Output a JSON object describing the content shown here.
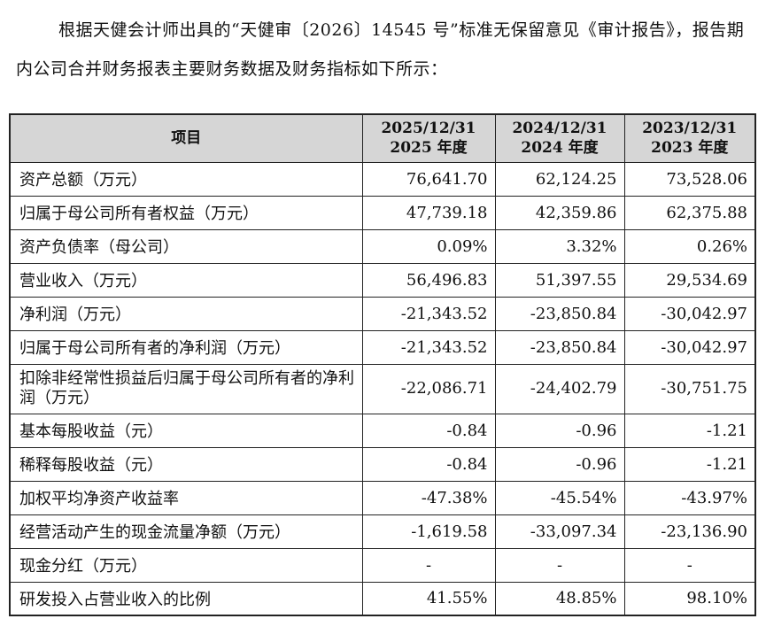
{
  "intro": "根据天健会计师出具的“天健审〔2026〕14545 号”标准无保留意见《审计报告》，报告期内公司合并财务报表主要财务数据及财务指标如下所示：",
  "table": {
    "header_item": "项目",
    "columns": [
      {
        "date": "2025/12/31",
        "year": "2025 年度"
      },
      {
        "date": "2024/12/31",
        "year": "2024 年度"
      },
      {
        "date": "2023/12/31",
        "year": "2023 年度"
      }
    ],
    "rows": [
      {
        "label": "资产总额（万元）",
        "values": [
          "76,641.70",
          "62,124.25",
          "73,528.06"
        ]
      },
      {
        "label": "归属于母公司所有者权益（万元）",
        "values": [
          "47,739.18",
          "42,359.86",
          "62,375.88"
        ]
      },
      {
        "label": "资产负债率（母公司）",
        "values": [
          "0.09%",
          "3.32%",
          "0.26%"
        ]
      },
      {
        "label": "营业收入（万元）",
        "values": [
          "56,496.83",
          "51,397.55",
          "29,534.69"
        ]
      },
      {
        "label": "净利润（万元）",
        "values": [
          "-21,343.52",
          "-23,850.84",
          "-30,042.97"
        ]
      },
      {
        "label": "归属于母公司所有者的净利润（万元）",
        "values": [
          "-21,343.52",
          "-23,850.84",
          "-30,042.97"
        ]
      },
      {
        "label": "扣除非经常性损益后归属于母公司所有者的净利润（万元）",
        "values": [
          "-22,086.71",
          "-24,402.79",
          "-30,751.75"
        ]
      },
      {
        "label": "基本每股收益（元）",
        "values": [
          "-0.84",
          "-0.96",
          "-1.21"
        ]
      },
      {
        "label": "稀释每股收益（元）",
        "values": [
          "-0.84",
          "-0.96",
          "-1.21"
        ]
      },
      {
        "label": "加权平均净资产收益率",
        "values": [
          "-47.38%",
          "-45.54%",
          "-43.97%"
        ]
      },
      {
        "label": "经营活动产生的现金流量净额（万元）",
        "values": [
          "-1,619.58",
          "-33,097.34",
          "-23,136.90"
        ]
      },
      {
        "label": "现金分红（万元）",
        "values": [
          "-",
          "-",
          "-"
        ]
      },
      {
        "label": "研发投入占营业收入的比例",
        "values": [
          "41.55%",
          "48.85%",
          "98.10%"
        ]
      }
    ]
  }
}
